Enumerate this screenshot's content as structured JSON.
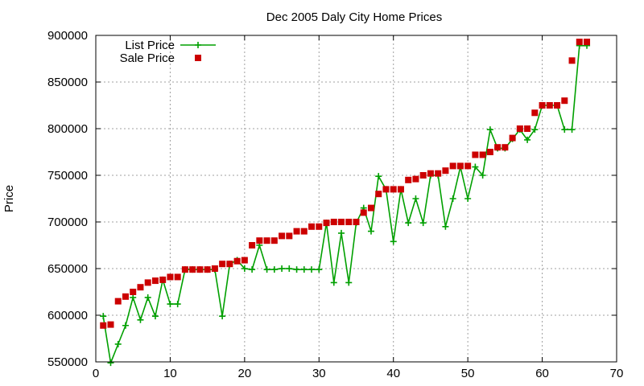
{
  "chart_data": {
    "type": "line",
    "title": "Dec 2005 Daly City Home Prices",
    "xlabel": "",
    "ylabel": "Price",
    "xlim": [
      0,
      70
    ],
    "ylim": [
      550000,
      900000
    ],
    "x_ticks": [
      0,
      10,
      20,
      30,
      40,
      50,
      60,
      70
    ],
    "y_ticks": [
      550000,
      600000,
      650000,
      700000,
      750000,
      800000,
      850000,
      900000
    ],
    "grid": true,
    "legend_position": "top-left",
    "colors": {
      "list": "#00a000",
      "sale": "#cc0000"
    },
    "series": [
      {
        "name": "List Price",
        "style": "line-plus",
        "x": [
          1,
          2,
          3,
          4,
          5,
          6,
          7,
          8,
          9,
          10,
          11,
          12,
          13,
          14,
          15,
          16,
          17,
          18,
          19,
          20,
          21,
          22,
          23,
          24,
          25,
          26,
          27,
          28,
          29,
          30,
          31,
          32,
          33,
          34,
          35,
          36,
          37,
          38,
          39,
          40,
          41,
          42,
          43,
          44,
          45,
          46,
          47,
          48,
          49,
          50,
          51,
          52,
          53,
          54,
          55,
          56,
          57,
          58,
          59,
          60,
          61,
          62,
          63,
          64,
          65,
          66
        ],
        "y": [
          599000,
          549000,
          569000,
          589000,
          619000,
          595000,
          619000,
          599000,
          638000,
          612000,
          612000,
          649000,
          649000,
          649000,
          649000,
          649000,
          599000,
          655000,
          659000,
          650000,
          649000,
          675000,
          649000,
          649000,
          650000,
          650000,
          649000,
          649000,
          649000,
          649000,
          699000,
          635000,
          688000,
          635000,
          699000,
          715000,
          690000,
          749000,
          735000,
          679000,
          735000,
          699000,
          725000,
          699000,
          750000,
          750000,
          695000,
          725000,
          759000,
          725000,
          759000,
          750000,
          799000,
          779000,
          779000,
          789000,
          799000,
          788000,
          799000,
          825000,
          825000,
          825000,
          799000,
          799000,
          889000,
          889000
        ]
      },
      {
        "name": "Sale Price",
        "style": "points-square",
        "x": [
          1,
          2,
          3,
          4,
          5,
          6,
          7,
          8,
          9,
          10,
          11,
          12,
          13,
          14,
          15,
          16,
          17,
          18,
          19,
          20,
          21,
          22,
          23,
          24,
          25,
          26,
          27,
          28,
          29,
          30,
          31,
          32,
          33,
          34,
          35,
          36,
          37,
          38,
          39,
          40,
          41,
          42,
          43,
          44,
          45,
          46,
          47,
          48,
          49,
          50,
          51,
          52,
          53,
          54,
          55,
          56,
          57,
          58,
          59,
          60,
          61,
          62,
          63,
          64,
          65,
          66
        ],
        "y": [
          589000,
          590000,
          615000,
          620000,
          625000,
          630000,
          635000,
          637000,
          638000,
          641000,
          641000,
          649000,
          649000,
          649000,
          649000,
          650000,
          655000,
          655000,
          658000,
          659000,
          675000,
          680000,
          680000,
          680000,
          685000,
          685000,
          690000,
          690000,
          695000,
          695000,
          699000,
          700000,
          700000,
          700000,
          700000,
          710000,
          715000,
          730000,
          735000,
          735000,
          735000,
          745000,
          746000,
          750000,
          752000,
          752000,
          755000,
          760000,
          760000,
          760000,
          772000,
          772000,
          775000,
          780000,
          780000,
          790000,
          800000,
          800000,
          817000,
          825000,
          825000,
          825000,
          830000,
          873000,
          893000,
          893000
        ]
      }
    ]
  }
}
